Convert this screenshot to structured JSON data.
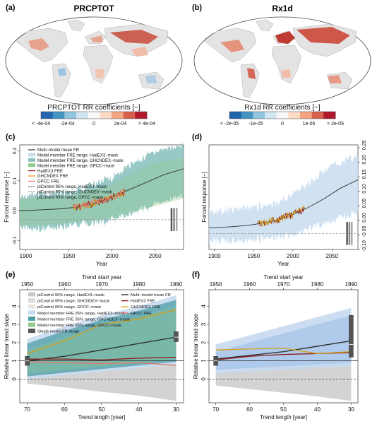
{
  "panels": {
    "a": {
      "letter": "(a)",
      "title": "PRCPTOT"
    },
    "b": {
      "letter": "(b)",
      "title": "Rx1d"
    },
    "c": {
      "letter": "(c)"
    },
    "d": {
      "letter": "(d)"
    },
    "e": {
      "letter": "(e)"
    },
    "f": {
      "letter": "(f)"
    }
  },
  "colorbars": [
    {
      "title": "PRCPTOT RR coefficients [−]",
      "ticks": [
        "< -4e-04",
        "-2e-04",
        "0",
        "2e-04",
        "> 4e-04"
      ]
    },
    {
      "title": "Rx1d RR coefficients [−]",
      "ticks": [
        "< -2e-05",
        "-1e-05",
        "0",
        "1e-05",
        "> 2e-05"
      ]
    }
  ],
  "colors": {
    "multi_model_mean": "#333333",
    "hadex3": "#8b1a1a",
    "ghcndex": "#d4a017",
    "gpcc": "#e8756a",
    "fre_hadex3_band": "#c8dcef",
    "fre_ghcndex_band": "#4d9ea6",
    "fre_gpcc_band": "#90c98a",
    "picontrol_band": "#c8c8c8",
    "single_model_box": "#555555",
    "map_land": "#e3e3e3",
    "map_ocean": "#ffffff"
  },
  "legend_c": [
    "Multi−model mean FR",
    "Model member FRE range, HadEX3−mask",
    "Model member FRE range, GHCNDEX−mask",
    "Model member FRE range, GPCC−mask",
    "HadEX3 FRE",
    "GHCNDEX FRE",
    "GPCC FRE",
    "piControl 95% range, HadEX3−mask",
    "piControl 95% range, GHCNDEX−mask",
    "piControl 95% range, GPCC−mask"
  ],
  "legend_e_left": [
    "piControl 95% range, HadEX3−mask",
    "piControl 95% range, GHCNDEX−mask",
    "piControl 95% range, GPCC−mask",
    "Model member FRE 95% range, HadEX3−mask",
    "Model member FRE 95% range, GHCNDEX−mask",
    "Model member FRE 95% range, GPCC−mask",
    "Single model FR range"
  ],
  "legend_e_right": [
    "Multi−model mean FR",
    "HadEX3 FRE",
    "GHCNDEX FRE",
    "GPCC FRE"
  ],
  "chart_data": [
    {
      "panel": "c",
      "type": "line",
      "xlabel": "Year",
      "ylabel": "Forced response [−]",
      "xlim": [
        1893,
        2083
      ],
      "ylim": [
        -0.13,
        0.22
      ],
      "xticks": [
        1900,
        1950,
        2000,
        2050
      ],
      "yticks": [
        -0.1,
        0.0,
        0.1,
        0.2
      ],
      "ytick_labels": [
        "-0.1",
        "0.0",
        "0.1",
        "0.2"
      ],
      "series": [
        {
          "name": "Multi−model mean FR",
          "x": [
            1893,
            1900,
            1920,
            1940,
            1960,
            1980,
            2000,
            2020,
            2040,
            2060,
            2083
          ],
          "y": [
            0.0,
            0.0,
            0.003,
            0.006,
            0.012,
            0.025,
            0.045,
            0.07,
            0.095,
            0.12,
            0.14
          ]
        }
      ],
      "band": {
        "x": [
          1893,
          1920,
          1950,
          1980,
          2000,
          2020,
          2050,
          2083
        ],
        "lower": [
          -0.06,
          -0.06,
          -0.05,
          -0.04,
          -0.03,
          -0.01,
          0.02,
          0.05
        ],
        "upper": [
          0.05,
          0.055,
          0.06,
          0.09,
          0.11,
          0.15,
          0.2,
          0.22
        ]
      },
      "observed": {
        "x_start": 1955,
        "x_end": 2015
      },
      "picontrol_level": -0.03
    },
    {
      "panel": "d",
      "type": "line",
      "xlabel": "Year",
      "ylabel": "Forced response [−]",
      "xlim": [
        1893,
        2083
      ],
      "ylim": [
        -0.1,
        0.26
      ],
      "xticks": [
        1900,
        1950,
        2000,
        2050
      ],
      "yticks": [
        -0.1,
        -0.05,
        0.0,
        0.05,
        0.1,
        0.15,
        0.2,
        0.25
      ],
      "ytick_labels": [
        "-0.10",
        "-0.05",
        "0.00",
        "0.05",
        "0.10",
        "0.15",
        "0.20",
        "0.25"
      ],
      "series": [
        {
          "name": "Multi−model mean FR",
          "x": [
            1893,
            1900,
            1920,
            1940,
            1960,
            1980,
            2000,
            2020,
            2040,
            2060,
            2083
          ],
          "y": [
            -0.025,
            -0.025,
            -0.022,
            -0.018,
            -0.01,
            0.002,
            0.02,
            0.045,
            0.075,
            0.11,
            0.14
          ]
        }
      ],
      "band": {
        "x": [
          1893,
          1920,
          1950,
          1980,
          2000,
          2020,
          2050,
          2083
        ],
        "lower": [
          -0.07,
          -0.07,
          -0.065,
          -0.06,
          -0.05,
          -0.03,
          0.0,
          0.03
        ],
        "upper": [
          0.03,
          0.035,
          0.045,
          0.06,
          0.09,
          0.13,
          0.19,
          0.22
        ]
      },
      "observed": {
        "x_start": 1955,
        "x_end": 2015
      },
      "picontrol_level": -0.045
    },
    {
      "panel": "e",
      "type": "line",
      "xlabel": "Trend length [year]",
      "ylabel": "Relative linear trend slope",
      "top_xlabel": "Trend start year",
      "xlim": [
        72,
        28
      ],
      "ylim": [
        -1.3,
        4.9
      ],
      "xticks": [
        70,
        60,
        50,
        40,
        30
      ],
      "top_xticks": [
        1950,
        1960,
        1970,
        1980,
        1990
      ],
      "yticks": [
        0,
        1,
        2,
        3,
        4
      ],
      "series": [
        {
          "name": "Multi−model mean FR",
          "x": [
            70,
            60,
            50,
            40,
            30
          ],
          "y": [
            1.0,
            1.25,
            1.6,
            1.95,
            2.3
          ]
        },
        {
          "name": "HadEX3 FRE",
          "x": [
            70,
            60,
            50,
            40,
            30
          ],
          "y": [
            1.1,
            1.1,
            1.05,
            1.15,
            1.2
          ]
        },
        {
          "name": "GHCNDEX FRE",
          "x": [
            70,
            60,
            50,
            40,
            30
          ],
          "y": [
            1.4,
            2.1,
            3.0,
            3.3,
            3.8
          ]
        },
        {
          "name": "GPCC FRE",
          "x": [
            70,
            60,
            50,
            40,
            30
          ],
          "y": [
            0.95,
            0.9,
            0.85,
            0.9,
            0.75
          ]
        }
      ],
      "fre_band": {
        "x": [
          70,
          60,
          50,
          40,
          30
        ],
        "lower": [
          0.0,
          0.2,
          0.4,
          0.6,
          0.8
        ],
        "upper": [
          2.2,
          2.9,
          3.5,
          4.0,
          4.6
        ]
      },
      "picontrol_band": {
        "x": [
          70,
          60,
          50,
          40,
          30
        ],
        "lower": [
          -0.25,
          -0.45,
          -0.7,
          -0.9,
          -1.2
        ],
        "upper": [
          0.25,
          0.45,
          0.7,
          0.9,
          1.2
        ]
      }
    },
    {
      "panel": "f",
      "type": "line",
      "xlabel": "Trend length [year]",
      "ylabel": "Relative linear trend slope",
      "top_xlabel": "Trend start year",
      "xlim": [
        72,
        28
      ],
      "ylim": [
        -1.3,
        4.9
      ],
      "xticks": [
        70,
        60,
        50,
        40,
        30
      ],
      "top_xticks": [
        1950,
        1960,
        1970,
        1980,
        1990
      ],
      "yticks": [
        0,
        1,
        2,
        3,
        4
      ],
      "series": [
        {
          "name": "Multi−model mean FR",
          "x": [
            70,
            60,
            50,
            40,
            30
          ],
          "y": [
            1.1,
            1.3,
            1.5,
            1.8,
            2.1
          ]
        },
        {
          "name": "HadEX3 FRE",
          "x": [
            70,
            60,
            50,
            40,
            30
          ],
          "y": [
            1.05,
            1.25,
            1.35,
            1.4,
            1.45
          ]
        },
        {
          "name": "GHCNDEX FRE",
          "x": [
            70,
            60,
            50,
            40,
            30
          ],
          "y": [
            1.6,
            1.65,
            1.7,
            1.4,
            1.5
          ]
        }
      ],
      "fre_band": {
        "x": [
          70,
          60,
          50,
          40,
          30
        ],
        "lower": [
          0.3,
          0.4,
          0.5,
          0.6,
          0.7
        ],
        "upper": [
          1.9,
          2.4,
          2.9,
          3.4,
          3.9
        ]
      },
      "picontrol_band": {
        "x": [
          70,
          60,
          50,
          40,
          30
        ],
        "lower": [
          -0.35,
          -0.55,
          -0.75,
          -0.95,
          -1.2
        ],
        "upper": [
          0.35,
          0.55,
          0.75,
          0.95,
          1.2
        ]
      }
    }
  ]
}
